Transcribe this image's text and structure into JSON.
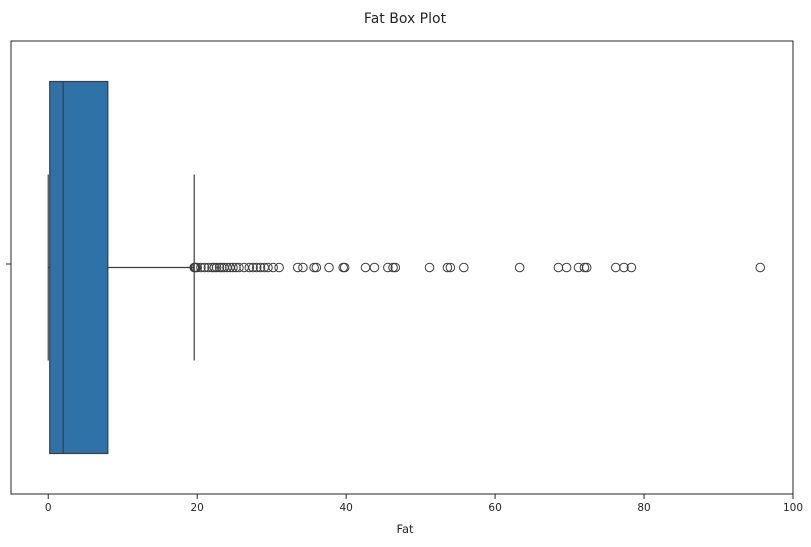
{
  "chart_data": {
    "type": "box",
    "title": "Fat Box Plot",
    "xlabel": "Fat",
    "ylabel": "",
    "orientation": "horizontal",
    "xlim": [
      -5,
      100
    ],
    "x_ticks": [
      0,
      20,
      40,
      60,
      80,
      100
    ],
    "grid": false,
    "legend": "none",
    "box_color": "#2f72a8",
    "line_color": "#3d3d3d",
    "series": [
      {
        "min": 0,
        "q1": 0.2,
        "median": 2.0,
        "q3": 8.0,
        "whisker_low": 0,
        "whisker_high": 19.6,
        "outliers": [
          19.6,
          19.7,
          19.8,
          20.0,
          20.5,
          21.0,
          21.5,
          22.0,
          22.3,
          22.6,
          23.0,
          23.3,
          23.6,
          24.0,
          24.4,
          24.8,
          25.2,
          25.6,
          26.3,
          27.0,
          27.5,
          28.0,
          28.5,
          29.0,
          29.5,
          30.2,
          31.0,
          33.5,
          34.2,
          35.7,
          36.0,
          37.7,
          39.6,
          39.8,
          42.6,
          43.8,
          45.6,
          46.3,
          46.6,
          51.2,
          53.6,
          54.0,
          55.8,
          63.3,
          68.5,
          69.6,
          71.2,
          72.0,
          72.3,
          76.2,
          77.3,
          78.3,
          95.6
        ]
      }
    ]
  }
}
